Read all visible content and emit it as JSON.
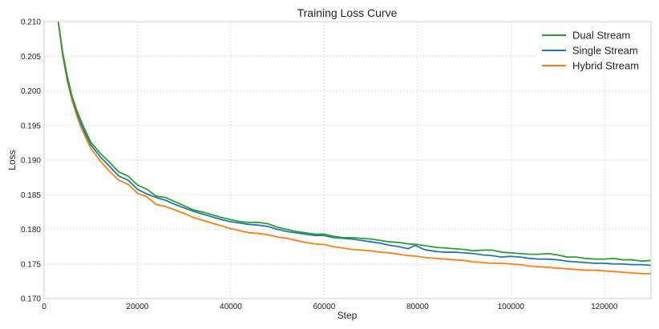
{
  "chart_data": {
    "type": "line",
    "title": "Training Loss Curve",
    "xlabel": "Step",
    "ylabel": "Loss",
    "xlim": [
      0,
      130000
    ],
    "ylim": [
      0.17,
      0.21
    ],
    "xticks": [
      0,
      20000,
      40000,
      60000,
      80000,
      100000,
      120000
    ],
    "yticks": [
      0.17,
      0.175,
      0.18,
      0.185,
      0.19,
      0.195,
      0.2,
      0.205,
      0.21
    ],
    "xtick_labels": [
      "0",
      "20000",
      "40000",
      "60000",
      "80000",
      "100000",
      "120000"
    ],
    "ytick_labels": [
      "0.170",
      "0.175",
      "0.180",
      "0.185",
      "0.190",
      "0.195",
      "0.200",
      "0.205",
      "0.210"
    ],
    "grid": true,
    "legend_position": "top-right",
    "series": [
      {
        "name": "Dual Stream",
        "color": "#2ca02c",
        "x": [
          3000,
          4000,
          5000,
          6000,
          7000,
          8000,
          9000,
          10000,
          12000,
          14000,
          16000,
          18000,
          20000,
          22000,
          24000,
          26000,
          28000,
          30000,
          32000,
          34000,
          36000,
          38000,
          40000,
          42000,
          44000,
          46000,
          48000,
          50000,
          52000,
          54000,
          56000,
          58000,
          60000,
          62000,
          64000,
          66000,
          68000,
          70000,
          72000,
          74000,
          76000,
          78000,
          80000,
          82000,
          84000,
          86000,
          88000,
          90000,
          92000,
          94000,
          96000,
          98000,
          100000,
          102000,
          104000,
          106000,
          108000,
          110000,
          112000,
          114000,
          116000,
          118000,
          120000,
          122000,
          124000,
          126000,
          128000,
          130000
        ],
        "values": [
          0.2102,
          0.2055,
          0.202,
          0.1992,
          0.1972,
          0.1955,
          0.194,
          0.1926,
          0.191,
          0.1897,
          0.1883,
          0.1877,
          0.1864,
          0.1858,
          0.1848,
          0.1846,
          0.184,
          0.1834,
          0.1828,
          0.1825,
          0.1821,
          0.1817,
          0.1814,
          0.1811,
          0.181,
          0.181,
          0.1808,
          0.1803,
          0.18,
          0.1797,
          0.1795,
          0.1793,
          0.1793,
          0.179,
          0.1788,
          0.1788,
          0.1787,
          0.1786,
          0.1784,
          0.1782,
          0.1781,
          0.1779,
          0.1778,
          0.1776,
          0.1774,
          0.1773,
          0.1772,
          0.1771,
          0.1769,
          0.177,
          0.177,
          0.1767,
          0.1766,
          0.1765,
          0.1764,
          0.1764,
          0.1765,
          0.1763,
          0.176,
          0.176,
          0.1758,
          0.1757,
          0.1757,
          0.1758,
          0.1756,
          0.1756,
          0.1754,
          0.1755
        ]
      },
      {
        "name": "Single Stream",
        "color": "#1f77b4",
        "x": [
          3000,
          4000,
          5000,
          6000,
          7000,
          8000,
          9000,
          10000,
          12000,
          14000,
          16000,
          18000,
          20000,
          22000,
          24000,
          26000,
          28000,
          30000,
          32000,
          34000,
          36000,
          38000,
          40000,
          42000,
          44000,
          46000,
          48000,
          50000,
          52000,
          54000,
          56000,
          58000,
          60000,
          62000,
          64000,
          66000,
          68000,
          70000,
          72000,
          74000,
          76000,
          78000,
          79500,
          81000,
          82000,
          84000,
          86000,
          88000,
          90000,
          92000,
          94000,
          96000,
          98000,
          100000,
          102000,
          104000,
          106000,
          108000,
          110000,
          112000,
          114000,
          116000,
          118000,
          120000,
          122000,
          124000,
          126000,
          128000,
          130000
        ],
        "values": [
          0.2102,
          0.2053,
          0.2017,
          0.199,
          0.1969,
          0.1951,
          0.1936,
          0.1922,
          0.1905,
          0.1891,
          0.1877,
          0.1871,
          0.1858,
          0.1851,
          0.1846,
          0.1842,
          0.1836,
          0.1831,
          0.1826,
          0.1822,
          0.1818,
          0.1814,
          0.1811,
          0.1809,
          0.1807,
          0.1806,
          0.1804,
          0.18,
          0.1797,
          0.1795,
          0.1793,
          0.1791,
          0.1791,
          0.1788,
          0.1787,
          0.1786,
          0.1784,
          0.1782,
          0.178,
          0.1777,
          0.1775,
          0.1772,
          0.1777,
          0.1772,
          0.177,
          0.1768,
          0.1767,
          0.1767,
          0.1766,
          0.1765,
          0.1763,
          0.1762,
          0.176,
          0.1761,
          0.176,
          0.1758,
          0.1757,
          0.1757,
          0.1756,
          0.1754,
          0.1753,
          0.1752,
          0.1751,
          0.1751,
          0.175,
          0.175,
          0.1749,
          0.1749,
          0.1748
        ]
      },
      {
        "name": "Hybrid Stream",
        "color": "#ff7f0e",
        "x": [
          3000,
          4000,
          5000,
          6000,
          7000,
          8000,
          9000,
          10000,
          12000,
          14000,
          16000,
          18000,
          20000,
          22000,
          24000,
          26000,
          28000,
          30000,
          32000,
          34000,
          36000,
          38000,
          40000,
          42000,
          44000,
          46000,
          48000,
          50000,
          52000,
          54000,
          56000,
          58000,
          60000,
          62000,
          64000,
          66000,
          68000,
          70000,
          72000,
          74000,
          76000,
          78000,
          80000,
          82000,
          84000,
          86000,
          88000,
          90000,
          92000,
          94000,
          96000,
          98000,
          100000,
          102000,
          104000,
          106000,
          108000,
          110000,
          112000,
          114000,
          116000,
          118000,
          120000,
          122000,
          124000,
          126000,
          128000,
          130000
        ],
        "values": [
          0.2102,
          0.205,
          0.2013,
          0.1986,
          0.1964,
          0.1946,
          0.1931,
          0.1917,
          0.1899,
          0.1884,
          0.1871,
          0.1865,
          0.1852,
          0.1847,
          0.1836,
          0.1833,
          0.1828,
          0.1823,
          0.1817,
          0.1813,
          0.1809,
          0.1805,
          0.1801,
          0.1798,
          0.1795,
          0.1794,
          0.1792,
          0.1789,
          0.1787,
          0.1784,
          0.1781,
          0.1779,
          0.1778,
          0.1775,
          0.1773,
          0.1771,
          0.177,
          0.1769,
          0.1767,
          0.1766,
          0.1764,
          0.1762,
          0.1761,
          0.1759,
          0.1758,
          0.1757,
          0.1756,
          0.1755,
          0.1753,
          0.1752,
          0.1751,
          0.1751,
          0.175,
          0.1749,
          0.1747,
          0.1746,
          0.1745,
          0.1744,
          0.1743,
          0.1742,
          0.1741,
          0.1741,
          0.174,
          0.1739,
          0.1738,
          0.1737,
          0.1736,
          0.1736
        ]
      }
    ]
  }
}
